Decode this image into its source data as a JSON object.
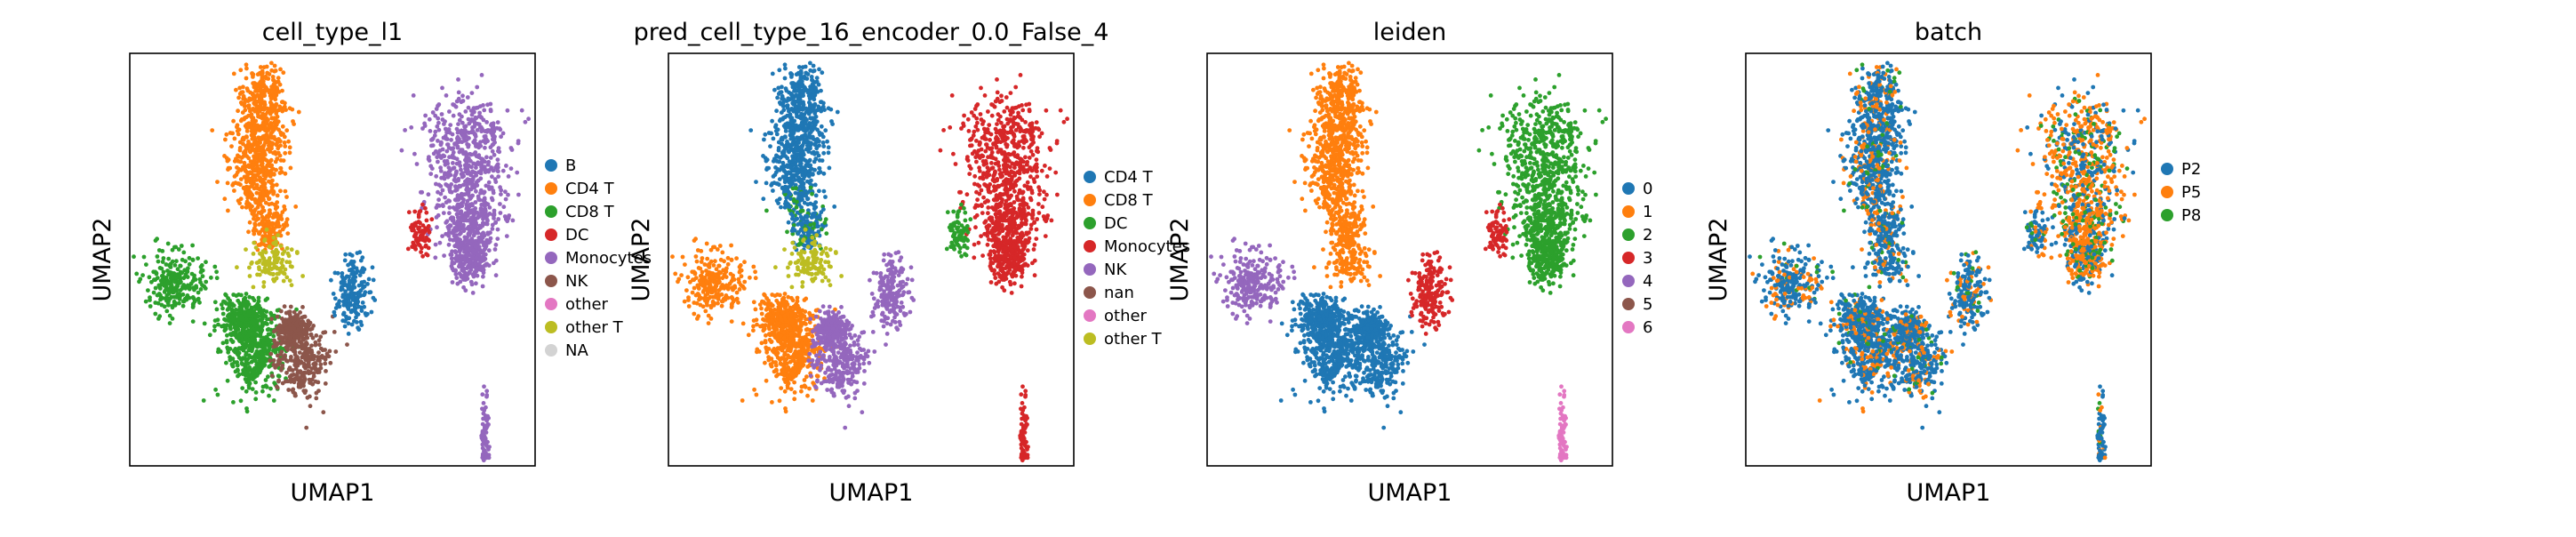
{
  "chart_data": [
    {
      "type": "scatter",
      "title": "cell_type_l1",
      "xlabel": "UMAP1",
      "ylabel": "UMAP2",
      "legend": [
        "B",
        "CD4 T",
        "CD8 T",
        "DC",
        "Monocytes",
        "NK",
        "other",
        "other T",
        "NA"
      ],
      "legend_colors": [
        "#1f77b4",
        "#ff7f0e",
        "#2ca02c",
        "#d62728",
        "#9467bd",
        "#8c564b",
        "#e377c2",
        "#bcbd22",
        "#d3d3d3"
      ],
      "legend_placement": "right"
    },
    {
      "type": "scatter",
      "title": "pred_cell_type_16_encoder_0.0_False_4",
      "xlabel": "UMAP1",
      "ylabel": "UMAP2",
      "legend": [
        "CD4 T",
        "CD8 T",
        "DC",
        "Monocytes",
        "NK",
        "nan",
        "other",
        "other T"
      ],
      "legend_colors": [
        "#1f77b4",
        "#ff7f0e",
        "#2ca02c",
        "#d62728",
        "#9467bd",
        "#8c564b",
        "#e377c2",
        "#bcbd22"
      ],
      "legend_placement": "right"
    },
    {
      "type": "scatter",
      "title": "leiden",
      "xlabel": "UMAP1",
      "ylabel": "UMAP2",
      "legend": [
        "0",
        "1",
        "2",
        "3",
        "4",
        "5",
        "6"
      ],
      "legend_colors": [
        "#1f77b4",
        "#ff7f0e",
        "#2ca02c",
        "#d62728",
        "#9467bd",
        "#8c564b",
        "#e377c2"
      ],
      "legend_placement": "right"
    },
    {
      "type": "scatter",
      "title": "batch",
      "xlabel": "UMAP1",
      "ylabel": "UMAP2",
      "legend": [
        "P2",
        "P5",
        "P8"
      ],
      "legend_colors": [
        "#1f77b4",
        "#ff7f0e",
        "#2ca02c"
      ],
      "legend_placement": "right"
    }
  ]
}
